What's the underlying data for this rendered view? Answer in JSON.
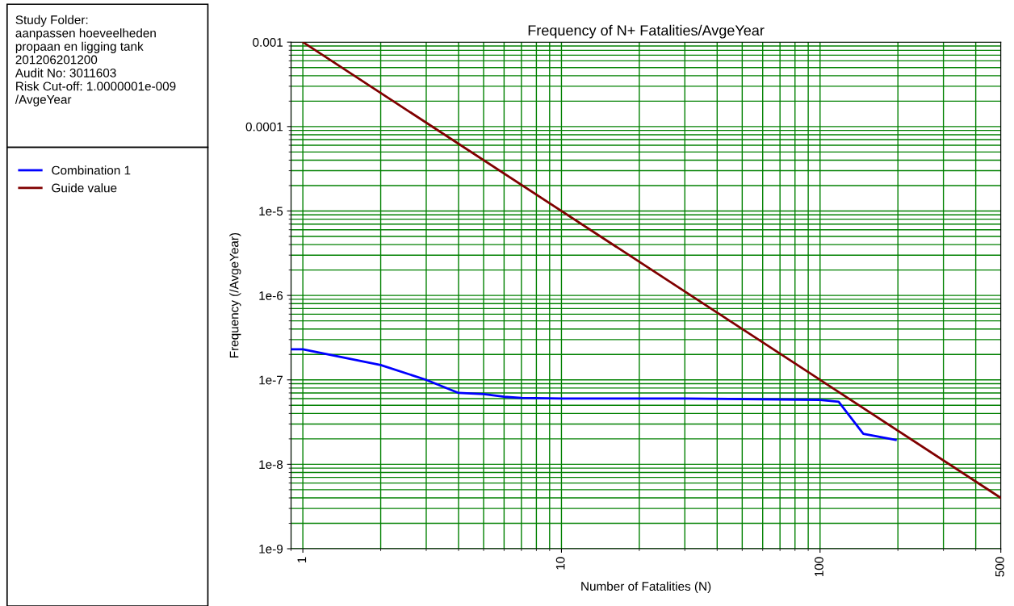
{
  "chart_data": {
    "type": "line",
    "title": "Frequency of N+ Fatalities/AvgeYear",
    "xlabel": "Number of Fatalities (N)",
    "ylabel": "Frequency (/AvgeYear)",
    "log": "xy",
    "xlim": [
      0.9,
      500
    ],
    "ylim": [
      1e-09,
      0.001
    ],
    "xticks": [
      1,
      10,
      100,
      500
    ],
    "yticks": [
      {
        "value": 1e-09,
        "label": "1e-9"
      },
      {
        "value": 1e-08,
        "label": "1e-8"
      },
      {
        "value": 1e-07,
        "label": "1e-7"
      },
      {
        "value": 1e-06,
        "label": "1e-6"
      },
      {
        "value": 1e-05,
        "label": "1e-5"
      },
      {
        "value": 0.0001,
        "label": "0.0001"
      },
      {
        "value": 0.001,
        "label": "0.001"
      }
    ],
    "grid": true,
    "legend": "left",
    "annotations": [
      "Study Folder:\naanpassen hoeveelheden\npropaan en ligging tank\n201206201200\nAudit No: 3011603\nRisk Cut-off: 1.0000001e-009\n/AvgeYear"
    ],
    "series": [
      {
        "name": "Combination 1",
        "color": "#0000ff",
        "x": [
          0.9,
          1,
          2,
          3,
          4,
          5,
          6,
          7,
          10,
          30,
          100,
          118,
          147,
          196
        ],
        "values": [
          2.3e-07,
          2.3e-07,
          1.5e-07,
          1e-07,
          7e-08,
          6.8e-08,
          6.3e-08,
          6.1e-08,
          6e-08,
          6e-08,
          5.8e-08,
          5.5e-08,
          2.3e-08,
          1.95e-08
        ]
      },
      {
        "name": "Guide value",
        "color": "#800000",
        "x": [
          1,
          500
        ],
        "values": [
          0.001,
          4e-09
        ]
      }
    ]
  }
}
